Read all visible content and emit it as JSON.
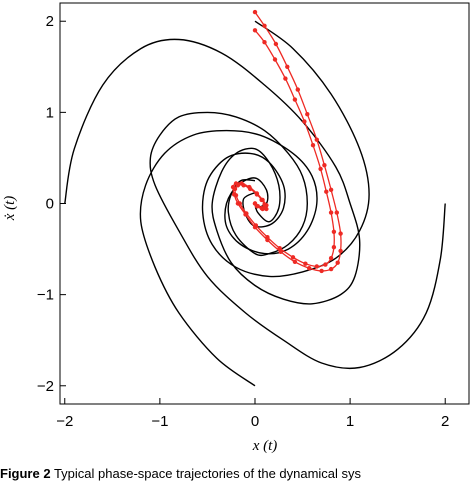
{
  "chart_data": {
    "type": "line",
    "title": "",
    "xlabel": "x (t)",
    "ylabel": "ẋ (t)",
    "xlim": [
      -2.05,
      2.25
    ],
    "ylim": [
      -2.2,
      2.2
    ],
    "xticks": [
      -2,
      -1,
      0,
      1,
      2
    ],
    "yticks": [
      -2,
      -1,
      0,
      1,
      2
    ],
    "xtick_labels": [
      "−2",
      "−1",
      "0",
      "1",
      "2"
    ],
    "ytick_labels": [
      "−2",
      "−1",
      "0",
      "1",
      "2"
    ],
    "grid": false,
    "series": [
      {
        "color": "#000000",
        "marker": "none",
        "x": [
          -2.0,
          -1.9,
          -1.6,
          -1.2,
          -0.8,
          -0.35,
          0.1,
          0.5,
          0.85,
          1.0,
          1.1,
          1.05,
          0.9,
          0.6,
          0.3,
          0.0,
          -0.25,
          -0.4,
          -0.45,
          -0.35,
          -0.2,
          0.0,
          0.15,
          0.25,
          0.25,
          0.15,
          0.03,
          0.0
        ],
        "y": [
          0.0,
          0.6,
          1.3,
          1.7,
          1.8,
          1.65,
          1.3,
          0.9,
          0.4,
          0.0,
          -0.4,
          -0.8,
          -1.0,
          -1.1,
          -1.05,
          -0.9,
          -0.65,
          -0.3,
          0.0,
          0.35,
          0.55,
          0.6,
          0.45,
          0.2,
          -0.05,
          -0.2,
          -0.1,
          0.0
        ]
      },
      {
        "color": "#000000",
        "marker": "none",
        "x": [
          2.0,
          1.95,
          1.8,
          1.5,
          1.1,
          0.7,
          0.3,
          -0.1,
          -0.5,
          -0.8,
          -1.05,
          -1.1,
          -1.0,
          -0.8,
          -0.5,
          -0.2,
          0.1,
          0.35,
          0.5,
          0.55,
          0.5,
          0.35,
          0.15,
          0.0,
          -0.2,
          -0.28,
          -0.25,
          -0.15,
          0.0
        ],
        "y": [
          0.0,
          -0.6,
          -1.2,
          -1.6,
          -1.8,
          -1.75,
          -1.5,
          -1.2,
          -0.8,
          -0.3,
          0.2,
          0.5,
          0.75,
          0.95,
          1.0,
          0.95,
          0.8,
          0.55,
          0.3,
          0.0,
          -0.25,
          -0.45,
          -0.55,
          -0.55,
          -0.35,
          -0.1,
          0.1,
          0.25,
          0.25
        ]
      },
      {
        "color": "#000000",
        "marker": "none",
        "x": [
          0.0,
          -0.4,
          -0.8,
          -1.05,
          -1.2,
          -1.15,
          -0.95,
          -0.65,
          -0.3,
          0.05,
          0.4,
          0.6,
          0.65,
          0.55,
          0.35,
          0.1,
          -0.15,
          -0.3,
          -0.3,
          -0.18,
          0.0,
          0.12,
          0.12,
          0.0
        ],
        "y": [
          -2.0,
          -1.7,
          -1.2,
          -0.7,
          -0.2,
          0.2,
          0.55,
          0.75,
          0.8,
          0.75,
          0.55,
          0.3,
          0.0,
          -0.3,
          -0.5,
          -0.55,
          -0.45,
          -0.25,
          0.0,
          0.2,
          0.28,
          0.15,
          0.0,
          -0.05
        ]
      },
      {
        "color": "#000000",
        "marker": "none",
        "x": [
          0.0,
          0.4,
          0.8,
          1.1,
          1.2,
          1.1,
          0.85,
          0.5,
          0.15,
          -0.2,
          -0.45,
          -0.55,
          -0.5,
          -0.3,
          -0.05,
          0.15,
          0.3,
          0.3,
          0.18,
          0.0,
          -0.1,
          -0.12,
          0.0
        ],
        "y": [
          2.0,
          1.7,
          1.2,
          0.6,
          0.1,
          -0.3,
          -0.6,
          -0.75,
          -0.8,
          -0.7,
          -0.45,
          -0.1,
          0.25,
          0.5,
          0.55,
          0.45,
          0.2,
          -0.05,
          -0.22,
          -0.25,
          -0.12,
          0.05,
          0.12
        ]
      },
      {
        "color": "#ee2a24",
        "marker": "dot",
        "x": [
          0.0,
          0.1,
          0.22,
          0.34,
          0.45,
          0.55,
          0.65,
          0.73,
          0.8,
          0.86,
          0.9,
          0.9,
          0.87,
          0.8,
          0.7,
          0.57,
          0.42,
          0.27,
          0.13,
          0.0,
          -0.1,
          -0.18,
          -0.22,
          -0.23,
          -0.2,
          -0.14,
          -0.06,
          0.02,
          0.08,
          0.12,
          0.12,
          0.08,
          0.03,
          0.0
        ],
        "y": [
          2.1,
          1.95,
          1.75,
          1.5,
          1.25,
          0.98,
          0.7,
          0.42,
          0.15,
          -0.1,
          -0.33,
          -0.52,
          -0.65,
          -0.72,
          -0.74,
          -0.71,
          -0.64,
          -0.53,
          -0.4,
          -0.26,
          -0.12,
          0.0,
          0.1,
          0.18,
          0.22,
          0.22,
          0.18,
          0.11,
          0.04,
          -0.02,
          -0.06,
          -0.06,
          -0.03,
          0.0
        ]
      },
      {
        "color": "#ee2a24",
        "marker": "dot",
        "x": [
          0.0,
          0.1,
          0.21,
          0.32,
          0.42,
          0.52,
          0.61,
          0.69,
          0.75,
          0.8,
          0.83,
          0.83,
          0.8,
          0.74,
          0.65,
          0.53,
          0.4,
          0.26,
          0.13,
          0.01,
          -0.09,
          -0.16,
          -0.2,
          -0.21,
          -0.18,
          -0.12,
          -0.05,
          0.02,
          0.07,
          0.1,
          0.1,
          0.07,
          0.02,
          0.0
        ],
        "y": [
          1.9,
          1.77,
          1.58,
          1.37,
          1.14,
          0.9,
          0.64,
          0.38,
          0.13,
          -0.1,
          -0.31,
          -0.48,
          -0.6,
          -0.67,
          -0.69,
          -0.66,
          -0.59,
          -0.49,
          -0.37,
          -0.24,
          -0.11,
          0.0,
          0.09,
          0.16,
          0.2,
          0.2,
          0.16,
          0.1,
          0.04,
          -0.01,
          -0.05,
          -0.05,
          -0.03,
          0.0
        ]
      }
    ]
  },
  "caption": {
    "lead": "Figure 2",
    "text": " Typical phase-space trajectories of the dynamical sys"
  }
}
